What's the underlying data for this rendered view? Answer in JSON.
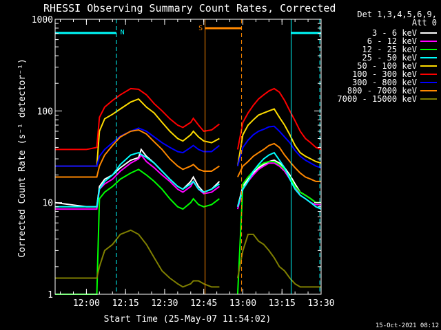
{
  "chart_data": {
    "type": "line",
    "title": "RHESSI Observing Summary Count Rates, Corrected",
    "xlabel": "Start Time (25-May-07 11:54:02)",
    "ylabel": "Corrected Count Rate (s⁻¹ detector⁻¹)",
    "yscale": "log",
    "xlim_min": [
      -6,
      96
    ],
    "ylim": [
      1,
      1000
    ],
    "x_ticks": [
      {
        "t": 6,
        "label": "12:00"
      },
      {
        "t": 21,
        "label": "12:15"
      },
      {
        "t": 36,
        "label": "12:30"
      },
      {
        "t": 51,
        "label": "12:45"
      },
      {
        "t": 66,
        "label": "13:00"
      },
      {
        "t": 81,
        "label": "13:15"
      },
      {
        "t": 96,
        "label": "13:30"
      }
    ],
    "y_ticks": [
      {
        "v": 1,
        "label": "1"
      },
      {
        "v": 10,
        "label": "10"
      },
      {
        "v": 100,
        "label": "100"
      },
      {
        "v": 1000,
        "label": "1000"
      }
    ],
    "legend": {
      "header": [
        "Det 1,3,4,5,6,9,",
        "Att 0"
      ],
      "position": "top-right outside"
    },
    "series": [
      {
        "name": "3 - 6 keV",
        "color": "#ffffff",
        "points": [
          [
            -6,
            10
          ],
          [
            6,
            9
          ],
          [
            10,
            9
          ],
          [
            11,
            15
          ],
          [
            13,
            18
          ],
          [
            16,
            20
          ],
          [
            19,
            24
          ],
          [
            23,
            29
          ],
          [
            26,
            31
          ],
          [
            27,
            38
          ],
          [
            29,
            32
          ],
          [
            32,
            27
          ],
          [
            35,
            22
          ],
          [
            38,
            18
          ],
          [
            41,
            15
          ],
          [
            43,
            14
          ],
          [
            46,
            17
          ],
          [
            47,
            19
          ],
          [
            49,
            15
          ],
          [
            51,
            13
          ],
          [
            54,
            14
          ],
          [
            57,
            17
          ]
        ]
      },
      {
        "name": "6 - 12 keV",
        "color": "#ff00ff",
        "points": [
          [
            -6,
            8.5
          ],
          [
            6,
            8.5
          ],
          [
            10,
            8.5
          ],
          [
            11,
            14
          ],
          [
            13,
            16
          ],
          [
            16,
            18
          ],
          [
            19,
            22
          ],
          [
            23,
            27
          ],
          [
            26,
            30
          ],
          [
            27,
            33
          ],
          [
            29,
            28
          ],
          [
            32,
            24
          ],
          [
            35,
            20
          ],
          [
            38,
            17
          ],
          [
            41,
            14
          ],
          [
            43,
            13
          ],
          [
            46,
            15
          ],
          [
            47,
            17
          ],
          [
            49,
            14
          ],
          [
            51,
            12.5
          ],
          [
            54,
            13
          ],
          [
            57,
            15
          ]
        ]
      },
      {
        "name": "12 - 25 keV",
        "color": "#00ff00",
        "points": [
          [
            -6,
            1
          ],
          [
            6,
            1
          ],
          [
            10,
            1
          ],
          [
            11,
            11
          ],
          [
            13,
            13
          ],
          [
            16,
            15
          ],
          [
            19,
            18
          ],
          [
            23,
            21
          ],
          [
            26,
            23
          ],
          [
            29,
            20
          ],
          [
            32,
            17
          ],
          [
            35,
            14
          ],
          [
            38,
            11
          ],
          [
            41,
            9
          ],
          [
            43,
            8.5
          ],
          [
            46,
            10
          ],
          [
            47,
            11
          ],
          [
            49,
            9.5
          ],
          [
            51,
            9
          ],
          [
            54,
            9.5
          ],
          [
            57,
            11
          ]
        ]
      },
      {
        "name": "25 - 50 keV",
        "color": "#00ffff",
        "points": [
          [
            -6,
            9
          ],
          [
            6,
            9
          ],
          [
            10,
            9
          ],
          [
            11,
            14
          ],
          [
            13,
            17
          ],
          [
            16,
            20
          ],
          [
            19,
            26
          ],
          [
            23,
            33
          ],
          [
            26,
            35
          ],
          [
            29,
            31
          ],
          [
            32,
            27
          ],
          [
            35,
            22
          ],
          [
            38,
            18
          ],
          [
            41,
            15
          ],
          [
            43,
            14
          ],
          [
            46,
            16
          ],
          [
            47,
            17
          ],
          [
            49,
            14
          ],
          [
            51,
            13
          ],
          [
            54,
            14
          ],
          [
            57,
            16
          ]
        ]
      },
      {
        "name": "50 - 100 keV",
        "color": "#ffdd00",
        "points": [
          [
            -6,
            25
          ],
          [
            6,
            25
          ],
          [
            10,
            25
          ],
          [
            11,
            60
          ],
          [
            13,
            82
          ],
          [
            16,
            92
          ],
          [
            19,
            105
          ],
          [
            23,
            125
          ],
          [
            26,
            135
          ],
          [
            29,
            110
          ],
          [
            32,
            95
          ],
          [
            35,
            75
          ],
          [
            38,
            60
          ],
          [
            41,
            50
          ],
          [
            43,
            47
          ],
          [
            46,
            55
          ],
          [
            47,
            60
          ],
          [
            49,
            52
          ],
          [
            51,
            47
          ],
          [
            54,
            45
          ],
          [
            57,
            50
          ]
        ]
      },
      {
        "name": "100 - 300 keV",
        "color": "#ff0000",
        "points": [
          [
            -6,
            38
          ],
          [
            6,
            38
          ],
          [
            10,
            40
          ],
          [
            11,
            85
          ],
          [
            13,
            110
          ],
          [
            16,
            130
          ],
          [
            19,
            150
          ],
          [
            23,
            175
          ],
          [
            26,
            172
          ],
          [
            29,
            150
          ],
          [
            32,
            120
          ],
          [
            35,
            100
          ],
          [
            38,
            82
          ],
          [
            41,
            70
          ],
          [
            43,
            66
          ],
          [
            46,
            75
          ],
          [
            47,
            83
          ],
          [
            49,
            70
          ],
          [
            51,
            60
          ],
          [
            54,
            62
          ],
          [
            57,
            72
          ]
        ]
      },
      {
        "name": "300 - 800 keV",
        "color": "#0000ff",
        "points": [
          [
            -6,
            25
          ],
          [
            6,
            25
          ],
          [
            10,
            25
          ],
          [
            11,
            32
          ],
          [
            13,
            38
          ],
          [
            16,
            45
          ],
          [
            19,
            53
          ],
          [
            23,
            60
          ],
          [
            26,
            65
          ],
          [
            29,
            60
          ],
          [
            32,
            52
          ],
          [
            35,
            45
          ],
          [
            38,
            40
          ],
          [
            41,
            36
          ],
          [
            43,
            35
          ],
          [
            46,
            40
          ],
          [
            47,
            42
          ],
          [
            49,
            38
          ],
          [
            51,
            36
          ],
          [
            54,
            36
          ],
          [
            57,
            42
          ]
        ]
      },
      {
        "name": "800 - 7000 keV",
        "color": "#ff8800",
        "points": [
          [
            -6,
            19
          ],
          [
            6,
            19
          ],
          [
            10,
            19
          ],
          [
            11,
            25
          ],
          [
            13,
            33
          ],
          [
            16,
            42
          ],
          [
            19,
            52
          ],
          [
            23,
            60
          ],
          [
            26,
            62
          ],
          [
            29,
            56
          ],
          [
            32,
            46
          ],
          [
            35,
            38
          ],
          [
            38,
            30
          ],
          [
            41,
            25
          ],
          [
            43,
            23
          ],
          [
            46,
            25
          ],
          [
            47,
            26
          ],
          [
            49,
            23
          ],
          [
            51,
            22
          ],
          [
            54,
            22
          ],
          [
            57,
            25
          ]
        ]
      },
      {
        "name": "7000 - 15000 keV",
        "color": "#808000",
        "points": [
          [
            -6,
            1.5
          ],
          [
            6,
            1.5
          ],
          [
            10,
            1.5
          ],
          [
            11,
            2
          ],
          [
            13,
            3
          ],
          [
            16,
            3.5
          ],
          [
            19,
            4.5
          ],
          [
            23,
            5
          ],
          [
            26,
            4.5
          ],
          [
            29,
            3.5
          ],
          [
            32,
            2.5
          ],
          [
            35,
            1.8
          ],
          [
            38,
            1.5
          ],
          [
            41,
            1.3
          ],
          [
            43,
            1.2
          ],
          [
            46,
            1.3
          ],
          [
            47,
            1.4
          ],
          [
            49,
            1.4
          ],
          [
            51,
            1.3
          ],
          [
            54,
            1.2
          ],
          [
            57,
            1.2
          ]
        ]
      }
    ],
    "series_after_gap": {
      "points_x": [
        64,
        66,
        68,
        70,
        72,
        74,
        76,
        78,
        80,
        82,
        84,
        86,
        88,
        90,
        92,
        94,
        96
      ],
      "values": {
        "3 - 6 keV": [
          9,
          15,
          18,
          21,
          24,
          26,
          28,
          29,
          27,
          24,
          20,
          16,
          13,
          12,
          11,
          10,
          10
        ],
        "6 - 12 keV": [
          8.5,
          14,
          17,
          20,
          23,
          25,
          27,
          27,
          25,
          22,
          18,
          15,
          12,
          11,
          10,
          9.5,
          9.5
        ],
        "12 - 25 keV": [
          1,
          16,
          19,
          22,
          25,
          27,
          28,
          28,
          26,
          23,
          19,
          15,
          13,
          12,
          11,
          10,
          10
        ],
        "25 - 50 keV": [
          9,
          14,
          17,
          22,
          26,
          30,
          33,
          35,
          29,
          24,
          18,
          14,
          12,
          11,
          10,
          9,
          8.5
        ],
        "50 - 100 keV": [
          25,
          55,
          70,
          80,
          90,
          95,
          100,
          105,
          85,
          70,
          55,
          42,
          35,
          32,
          30,
          28,
          27
        ],
        "100 - 300 keV": [
          38,
          75,
          95,
          115,
          135,
          150,
          165,
          175,
          160,
          130,
          100,
          78,
          60,
          50,
          45,
          40,
          38
        ],
        "300 - 800 keV": [
          25,
          40,
          48,
          55,
          60,
          63,
          67,
          68,
          60,
          52,
          45,
          37,
          32,
          29,
          27,
          25,
          24
        ],
        "800 - 7000 keV": [
          19,
          25,
          28,
          32,
          35,
          38,
          42,
          44,
          40,
          33,
          28,
          24,
          21,
          19,
          18,
          17,
          17
        ],
        "7000 - 15000 keV": [
          1.5,
          3,
          4.5,
          4.5,
          3.8,
          3.5,
          3,
          2.5,
          2,
          1.8,
          1.5,
          1.3,
          1.2,
          1.2,
          1.2,
          1.2,
          1.2
        ]
      }
    },
    "annotations": [
      {
        "text": "N",
        "color": "#00ffff"
      },
      {
        "text": "S",
        "color": "#ff8800"
      }
    ],
    "markers": {
      "cyan_solid": [
        -6,
        84.5
      ],
      "cyan_dashed": [
        17.5,
        95.5
      ],
      "orange_solid": 51.5,
      "orange_dashed": 65.5
    },
    "footer_date": "15-Oct-2021 08:12"
  }
}
